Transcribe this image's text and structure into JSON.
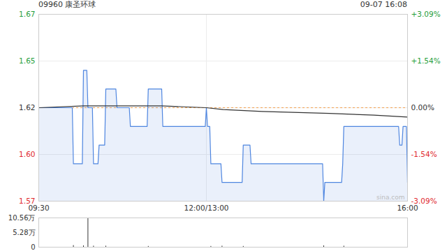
{
  "chart_data": [
    {
      "type": "line",
      "title": "09960 康圣环球",
      "subtitle": "09-07 16:08",
      "xlim": [
        0,
        330
      ],
      "xticks": [
        {
          "value": 0,
          "label": "09:30"
        },
        {
          "value": 150,
          "label": "12:00/13:00"
        },
        {
          "value": 330,
          "label": "16:00"
        }
      ],
      "ylim": [
        1.57,
        1.67
      ],
      "yticks": [
        1.67,
        {
          "value": 1.645,
          "label": "1.65"
        },
        1.62,
        {
          "value": 1.595,
          "label": "1.60"
        },
        1.57
      ],
      "y2lim": [
        -3.09,
        3.09
      ],
      "y2ticks": [
        {
          "value": 3.09,
          "label": "+3.09%"
        },
        {
          "value": 1.54,
          "label": "+1.54%"
        },
        {
          "value": 0,
          "label": "0.00%"
        },
        {
          "value": -1.54,
          "label": "-1.54%"
        },
        {
          "value": -3.09,
          "label": "-3.09%"
        }
      ],
      "reference": 1.62,
      "grid": true,
      "annotation": "sina.com",
      "series": [
        {
          "type": "area",
          "color": "#4f86e0",
          "x": [
            0,
            30,
            31,
            39,
            40,
            43,
            44,
            48,
            49,
            53,
            54,
            59,
            60,
            69,
            70,
            81,
            82,
            97,
            98,
            110,
            111,
            149,
            150,
            151,
            153,
            154,
            163,
            164,
            182,
            183,
            189,
            190,
            254,
            255,
            256,
            271,
            272,
            273,
            322,
            323,
            325,
            326,
            329,
            330
          ],
          "values": [
            1.62,
            1.62,
            1.59,
            1.59,
            1.64,
            1.64,
            1.62,
            1.62,
            1.59,
            1.59,
            1.6,
            1.6,
            1.63,
            1.63,
            1.62,
            1.62,
            1.61,
            1.61,
            1.63,
            1.63,
            1.61,
            1.61,
            1.62,
            1.61,
            1.61,
            1.59,
            1.59,
            1.58,
            1.58,
            1.6,
            1.6,
            1.59,
            1.59,
            1.57,
            1.58,
            1.58,
            1.59,
            1.61,
            1.61,
            1.6,
            1.6,
            1.61,
            1.61,
            1.58
          ]
        },
        {
          "type": "line",
          "color": "#333333",
          "x": [
            0,
            40,
            110,
            150,
            165,
            200,
            260,
            300,
            330
          ],
          "values": [
            1.62,
            1.621,
            1.621,
            1.62,
            1.619,
            1.618,
            1.617,
            1.616,
            1.615
          ]
        }
      ]
    },
    {
      "type": "bar",
      "color": "#333333",
      "xlim": [
        0,
        330
      ],
      "ylim": [
        0,
        10.56
      ],
      "yticks": [
        {
          "value": 10.56,
          "label": "10.56万"
        },
        {
          "value": 5.28,
          "label": "5.28万"
        },
        0
      ],
      "x": [
        0,
        31,
        40,
        44,
        49,
        60,
        98,
        154,
        164,
        183,
        255,
        273,
        330
      ],
      "values": [
        0.8,
        0.6,
        0.5,
        10.56,
        0.4,
        0.4,
        0.3,
        0.3,
        0.4,
        0.3,
        0.5,
        0.4,
        0.6
      ]
    }
  ]
}
